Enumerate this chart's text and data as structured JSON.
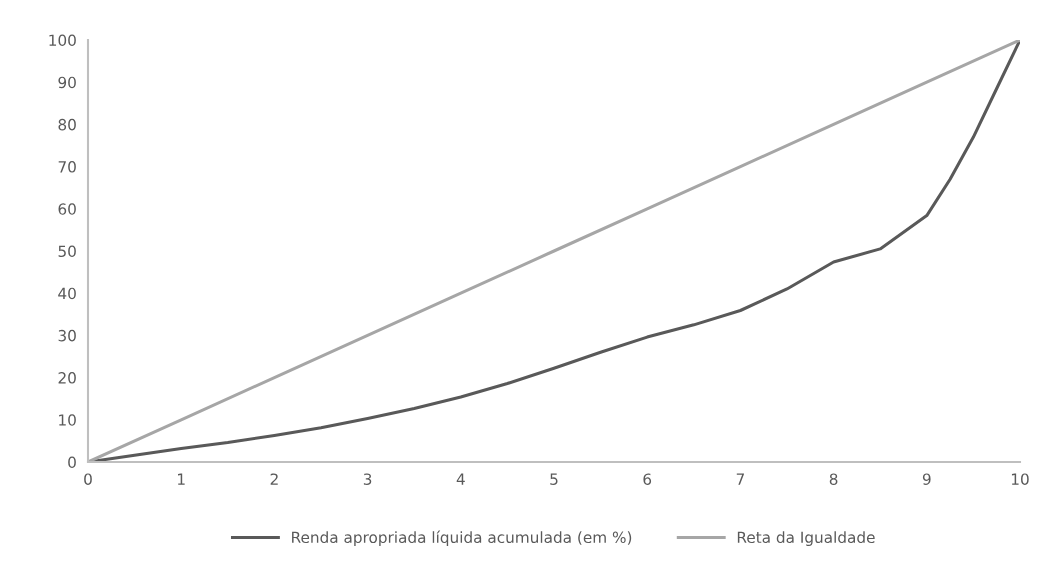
{
  "chart_data": {
    "type": "line",
    "x": [
      0,
      1,
      2,
      3,
      4,
      5,
      6,
      7,
      8,
      9,
      10
    ],
    "series": [
      {
        "name": "Renda apropriada líquida acumulada (em %)",
        "color": "#595959",
        "x": [
          0,
          0.5,
          1,
          1.5,
          2,
          2.5,
          3,
          3.5,
          4,
          4.5,
          5,
          5.5,
          6,
          6.5,
          7,
          7.5,
          8,
          8.5,
          9,
          9.25,
          9.5,
          9.75,
          10
        ],
        "values": [
          0,
          1.6,
          3.2,
          4.6,
          6.3,
          8.1,
          10.3,
          12.7,
          15.4,
          18.6,
          22.2,
          26,
          29.6,
          32.5,
          35.9,
          41,
          47.4,
          50.5,
          58.4,
          67,
          77,
          88.5,
          100
        ]
      },
      {
        "name": "Reta da Igualdade",
        "color": "#a6a6a6",
        "values": [
          0,
          10,
          20,
          30,
          40,
          50,
          60,
          70,
          80,
          90,
          100
        ]
      }
    ],
    "xlim": [
      0,
      10
    ],
    "xticks": [
      0,
      1,
      2,
      3,
      4,
      5,
      6,
      7,
      8,
      9,
      10
    ],
    "ylim": [
      0,
      100
    ],
    "yticks": [
      0,
      10,
      20,
      30,
      40,
      50,
      60,
      70,
      80,
      90,
      100
    ],
    "grid": false,
    "legend": "bottom",
    "marker": "none",
    "line_style": "solid"
  }
}
